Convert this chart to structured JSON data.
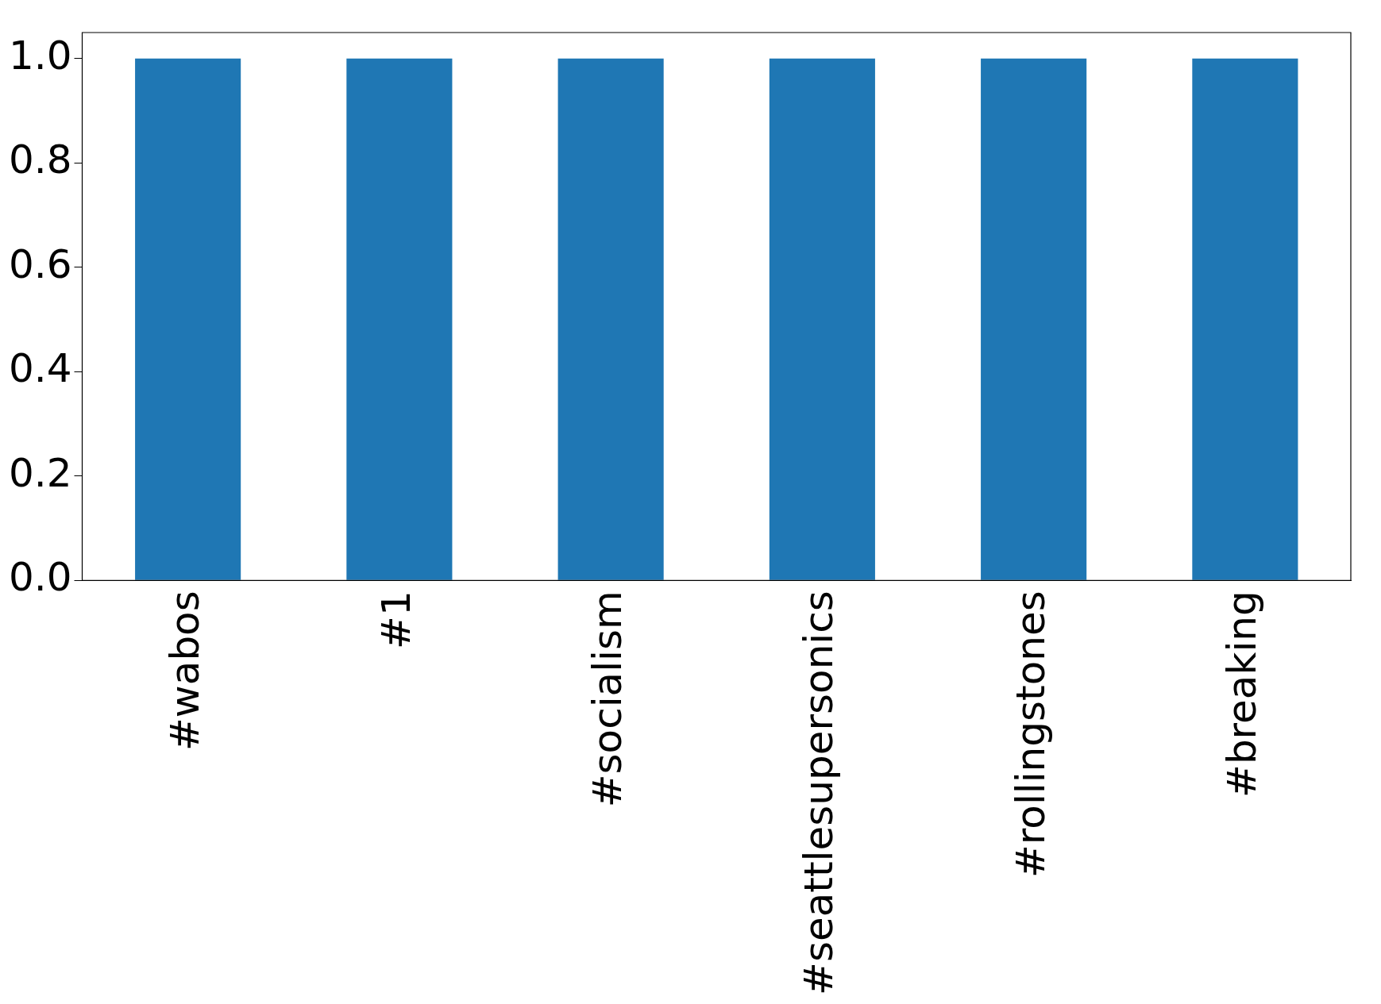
{
  "chart_data": {
    "type": "bar",
    "categories": [
      "#wabos",
      "#1",
      "#socialism",
      "#seattlesupersonics",
      "#rollingstones",
      "#breaking"
    ],
    "values": [
      1,
      1,
      1,
      1,
      1,
      1
    ],
    "color": "#1f77b4",
    "ylim": [
      0,
      1.05
    ],
    "yticks": [
      {
        "value": 0,
        "label": "0.0"
      },
      {
        "value": 0.2,
        "label": "0.2"
      },
      {
        "value": 0.4,
        "label": "0.4"
      },
      {
        "value": 0.6,
        "label": "0.6"
      },
      {
        "value": 0.8,
        "label": "0.8"
      },
      {
        "value": 1,
        "label": "1.0"
      }
    ],
    "grid": false,
    "legend": false
  }
}
